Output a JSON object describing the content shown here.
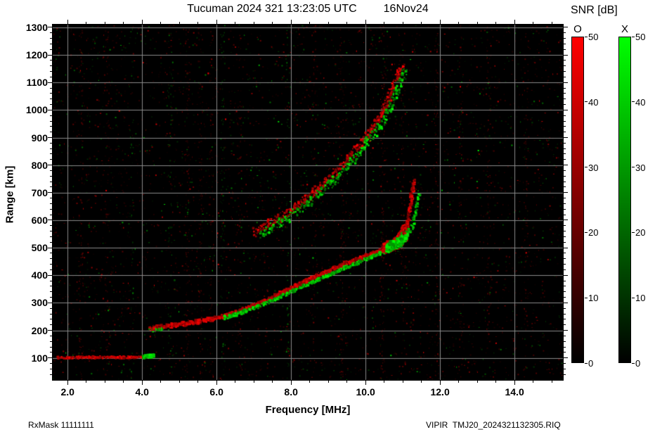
{
  "header": {
    "title": "Tucuman 2024 321 13:23:05 UTC",
    "date": "16Nov24"
  },
  "footer": {
    "left": "RxMask 11111111",
    "right": "VIPIR  TMJ20_2024321132305.RIQ"
  },
  "colorbar_title": "SNR [dB]",
  "colorbars": [
    {
      "label": "O",
      "color": "#ff0000",
      "min": 0,
      "max": 50,
      "ticks": [
        50,
        40,
        30,
        20,
        10,
        0
      ]
    },
    {
      "label": "X",
      "color": "#00ff00",
      "min": 0,
      "max": 50,
      "ticks": [
        50,
        40,
        30,
        20,
        10,
        0
      ]
    }
  ],
  "chart_data": {
    "type": "heatmap",
    "title": "Tucuman 2024 321 13:23:05 UTC",
    "subtitle": "16Nov24",
    "xlabel": "Frequency [MHz]",
    "ylabel": "Range [km]",
    "xlim": [
      1.6,
      15.3
    ],
    "ylim": [
      20,
      1310
    ],
    "xtick_values": [
      2,
      4,
      6,
      8,
      10,
      12,
      14
    ],
    "xtick_labels": [
      "2.0",
      "4.0",
      "6.0",
      "8.0",
      "10.0",
      "12.0",
      "14.0"
    ],
    "ytick_values": [
      100,
      200,
      300,
      400,
      500,
      600,
      700,
      800,
      900,
      1000,
      1100,
      1200,
      1300
    ],
    "x_minor_step": 0.5,
    "y_minor_step": 20,
    "grid": true,
    "grid_color": "#8a8a8a",
    "background": "#000000",
    "snr_scale": {
      "min": 0,
      "max": 50,
      "unit": "dB",
      "o_color": "#ff0000",
      "x_color": "#00ff00"
    },
    "series": [
      {
        "name": "E-layer O-mode",
        "mode": "O",
        "channel": "r",
        "size": 2.0,
        "jx": 1.5,
        "jy": 3,
        "density": 2.2,
        "bmin": 110,
        "points": [
          [
            1.7,
            101
          ],
          [
            2.6,
            102
          ],
          [
            3.5,
            102
          ],
          [
            4.3,
            104
          ]
        ]
      },
      {
        "name": "E-layer X-mode tip",
        "mode": "X",
        "channel": "g",
        "size": 2.8,
        "jx": 2,
        "jy": 4,
        "density": 3.2,
        "bmin": 140,
        "points": [
          [
            4.02,
            104
          ],
          [
            4.35,
            109
          ]
        ]
      },
      {
        "name": "F-layer O-mode",
        "mode": "O",
        "channel": "r",
        "size": 2.4,
        "jx": 2,
        "jy": 6,
        "density": 2.4,
        "bmin": 130,
        "points": [
          [
            4.2,
            207
          ],
          [
            4.6,
            214
          ],
          [
            5.0,
            221
          ],
          [
            5.5,
            231
          ],
          [
            6.0,
            244
          ],
          [
            6.5,
            263
          ],
          [
            7.0,
            289
          ],
          [
            7.5,
            318
          ],
          [
            8.0,
            352
          ],
          [
            8.5,
            384
          ],
          [
            9.0,
            414
          ],
          [
            9.5,
            444
          ],
          [
            10.0,
            469
          ],
          [
            10.3,
            486
          ],
          [
            10.55,
            501
          ]
        ]
      },
      {
        "name": "F-layer X-mode",
        "mode": "X",
        "channel": "g",
        "size": 2.2,
        "jx": 2,
        "jy": 5,
        "density": 1.7,
        "bmin": 120,
        "points": [
          [
            6.2,
            245
          ],
          [
            6.7,
            266
          ],
          [
            7.2,
            292
          ],
          [
            7.7,
            320
          ],
          [
            8.2,
            352
          ],
          [
            8.7,
            382
          ],
          [
            9.2,
            412
          ],
          [
            9.7,
            441
          ],
          [
            10.1,
            463
          ],
          [
            10.5,
            485
          ]
        ]
      },
      {
        "name": "F-layer O-mode cusp",
        "mode": "O",
        "channel": "r",
        "size": 3.2,
        "jx": 9,
        "jy": 13,
        "density": 8,
        "bmin": 140,
        "points": [
          [
            10.5,
            497
          ],
          [
            10.7,
            508
          ],
          [
            10.9,
            523
          ],
          [
            11.0,
            540
          ],
          [
            11.08,
            566
          ]
        ]
      },
      {
        "name": "F-layer X-mode cusp",
        "mode": "X",
        "channel": "g",
        "size": 3.0,
        "jx": 8,
        "jy": 11,
        "density": 6.5,
        "bmin": 130,
        "points": [
          [
            10.6,
            497
          ],
          [
            10.8,
            512
          ],
          [
            11.0,
            530
          ],
          [
            11.1,
            552
          ]
        ]
      },
      {
        "name": "F-layer O-mode asymptote",
        "mode": "O",
        "channel": "r",
        "size": 2.4,
        "jx": 4,
        "jy": 10,
        "density": 1.5,
        "bmin": 100,
        "points": [
          [
            11.02,
            548
          ],
          [
            11.1,
            580
          ],
          [
            11.16,
            615
          ],
          [
            11.21,
            655
          ],
          [
            11.26,
            700
          ],
          [
            11.3,
            740
          ]
        ]
      },
      {
        "name": "F-layer X-mode asymptote",
        "mode": "X",
        "channel": "g",
        "size": 2.2,
        "jx": 4,
        "jy": 10,
        "density": 1.0,
        "bmin": 95,
        "points": [
          [
            11.15,
            545
          ],
          [
            11.25,
            580
          ],
          [
            11.33,
            620
          ],
          [
            11.4,
            665
          ],
          [
            11.45,
            705
          ]
        ]
      },
      {
        "name": "Second-hop O-mode",
        "mode": "O",
        "channel": "r",
        "size": 2.2,
        "jx": 7,
        "jy": 12,
        "density": 1.6,
        "bmin": 80,
        "points": [
          [
            7.0,
            555
          ],
          [
            7.4,
            585
          ],
          [
            7.8,
            618
          ],
          [
            8.2,
            655
          ],
          [
            8.6,
            698
          ],
          [
            9.0,
            748
          ],
          [
            9.4,
            802
          ],
          [
            9.8,
            862
          ],
          [
            10.1,
            916
          ],
          [
            10.4,
            976
          ],
          [
            10.6,
            1032
          ],
          [
            10.75,
            1082
          ],
          [
            10.9,
            1132
          ],
          [
            11.0,
            1158
          ]
        ]
      },
      {
        "name": "Second-hop X-mode",
        "mode": "X",
        "channel": "g",
        "size": 2.2,
        "jx": 8,
        "jy": 12,
        "density": 1.1,
        "bmin": 80,
        "points": [
          [
            7.1,
            545
          ],
          [
            7.5,
            575
          ],
          [
            7.9,
            608
          ],
          [
            8.3,
            645
          ],
          [
            8.7,
            688
          ],
          [
            9.1,
            738
          ],
          [
            9.5,
            792
          ],
          [
            9.9,
            852
          ],
          [
            10.2,
            906
          ],
          [
            10.5,
            966
          ],
          [
            10.7,
            1022
          ],
          [
            10.85,
            1072
          ],
          [
            11.0,
            1122
          ],
          [
            11.1,
            1152
          ]
        ]
      },
      {
        "name": "F-start X-mode speckle",
        "mode": "X",
        "channel": "g",
        "size": 2.0,
        "jx": 3,
        "jy": 5,
        "density": 1.0,
        "bmin": 90,
        "points": [
          [
            4.2,
            198
          ],
          [
            4.55,
            204
          ]
        ]
      }
    ],
    "noise_bands": [
      {
        "f": 2.35,
        "ch": "r",
        "n": 80
      },
      {
        "f": 3.05,
        "ch": "r",
        "n": 60
      },
      {
        "f": 3.7,
        "ch": "g",
        "n": 40
      },
      {
        "f": 4.75,
        "ch": "g",
        "n": 55
      },
      {
        "f": 5.2,
        "ch": "r",
        "n": 100
      },
      {
        "f": 5.55,
        "ch": "r",
        "n": 85
      },
      {
        "f": 5.85,
        "ch": "r",
        "n": 65
      },
      {
        "f": 6.15,
        "ch": "g",
        "n": 70
      },
      {
        "f": 6.6,
        "ch": "r",
        "n": 55
      },
      {
        "f": 7.9,
        "ch": "g",
        "n": 50
      },
      {
        "f": 8.6,
        "ch": "r",
        "n": 55
      },
      {
        "f": 9.35,
        "ch": "r",
        "n": 100
      },
      {
        "f": 10.45,
        "ch": "r",
        "n": 120
      },
      {
        "f": 11.0,
        "ch": "r",
        "n": 70
      },
      {
        "f": 11.9,
        "ch": "r",
        "n": 85
      },
      {
        "f": 12.55,
        "ch": "r",
        "n": 65
      },
      {
        "f": 13.3,
        "ch": "r",
        "n": 75
      },
      {
        "f": 14.3,
        "ch": "r",
        "n": 65
      }
    ],
    "base_noise": {
      "count": 4200,
      "red_fraction": 0.72
    }
  }
}
